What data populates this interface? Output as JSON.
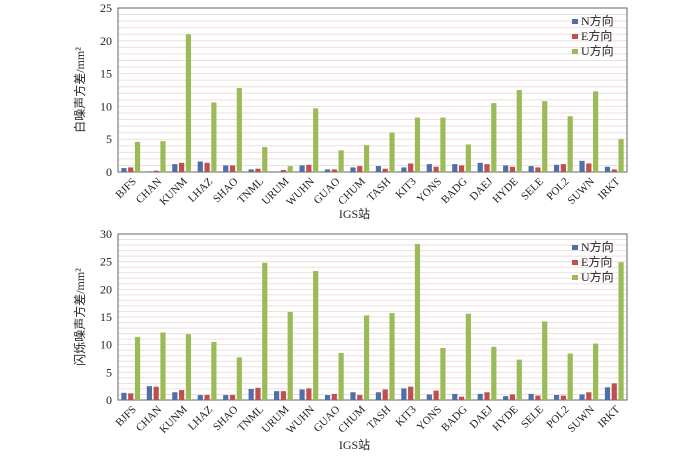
{
  "colors": {
    "N": "#4f6fa8",
    "E": "#c0504d",
    "U": "#9bbb59",
    "grid": "#eedede",
    "frame": "#666666"
  },
  "chart_data": [
    {
      "type": "bar",
      "title": "",
      "xlabel": "IGS站",
      "ylabel": "白噪声方差/mm²",
      "ylim": [
        0,
        25
      ],
      "yticks": [
        "0",
        "5",
        "10",
        "15",
        "20",
        "25"
      ],
      "legend_position": "top-right",
      "categories": [
        "BJFS",
        "CHAN",
        "KUNM",
        "LHAZ",
        "SHAO",
        "TNML",
        "URUM",
        "WUHN",
        "GUAO",
        "CHUM",
        "TASH",
        "KIT3",
        "YONS",
        "BADG",
        "DAEJ",
        "HYDE",
        "SELE",
        "POL2",
        "SUWN",
        "IRKT"
      ],
      "series": [
        {
          "name": "N方向",
          "values": [
            0.6,
            0.1,
            1.2,
            1.6,
            1.0,
            0.4,
            0.0,
            1.0,
            0.4,
            0.7,
            0.9,
            0.7,
            1.2,
            1.2,
            1.4,
            1.0,
            0.9,
            1.1,
            1.7,
            0.8
          ]
        },
        {
          "name": "E方向",
          "values": [
            0.7,
            0.2,
            1.4,
            1.4,
            1.0,
            0.5,
            0.3,
            1.1,
            0.4,
            0.9,
            0.5,
            1.3,
            0.8,
            1.0,
            1.2,
            0.8,
            0.7,
            1.2,
            1.3,
            0.4
          ]
        },
        {
          "name": "U方向",
          "values": [
            4.6,
            4.7,
            21.0,
            10.6,
            12.8,
            3.8,
            0.9,
            9.7,
            3.3,
            4.1,
            6.0,
            8.3,
            8.3,
            4.2,
            10.5,
            12.5,
            10.8,
            8.5,
            12.3,
            5.0
          ]
        }
      ]
    },
    {
      "type": "bar",
      "title": "",
      "xlabel": "IGS站",
      "ylabel": "闪烁噪声方差/mm²",
      "ylim": [
        0,
        30
      ],
      "yticks": [
        "0",
        "5",
        "10",
        "15",
        "20",
        "25",
        "30"
      ],
      "legend_position": "top-right",
      "categories": [
        "BJFS",
        "CHAN",
        "KUNM",
        "LHAZ",
        "SHAO",
        "TNML",
        "URUM",
        "WUHN",
        "GUAO",
        "CHUM",
        "TASH",
        "KIT3",
        "YONS",
        "BADG",
        "DAEJ",
        "HYDE",
        "SELE",
        "POL2",
        "SUWN",
        "IRKT"
      ],
      "series": [
        {
          "name": "N方向",
          "values": [
            1.3,
            2.5,
            1.4,
            0.9,
            0.9,
            2.0,
            1.6,
            1.9,
            0.9,
            1.4,
            1.4,
            2.1,
            1.0,
            1.1,
            1.1,
            0.7,
            1.1,
            0.9,
            1.0,
            2.3
          ]
        },
        {
          "name": "E方向",
          "values": [
            1.2,
            2.4,
            1.8,
            0.9,
            0.9,
            2.2,
            1.6,
            2.1,
            1.1,
            0.9,
            1.9,
            2.4,
            1.7,
            0.6,
            1.4,
            1.0,
            0.8,
            0.8,
            1.4,
            3.0
          ]
        },
        {
          "name": "U方向",
          "values": [
            11.4,
            12.2,
            11.9,
            10.5,
            7.7,
            24.8,
            15.9,
            23.3,
            8.5,
            15.3,
            15.7,
            28.2,
            9.4,
            15.6,
            9.6,
            7.3,
            14.2,
            8.4,
            10.2,
            24.9
          ]
        }
      ]
    }
  ]
}
